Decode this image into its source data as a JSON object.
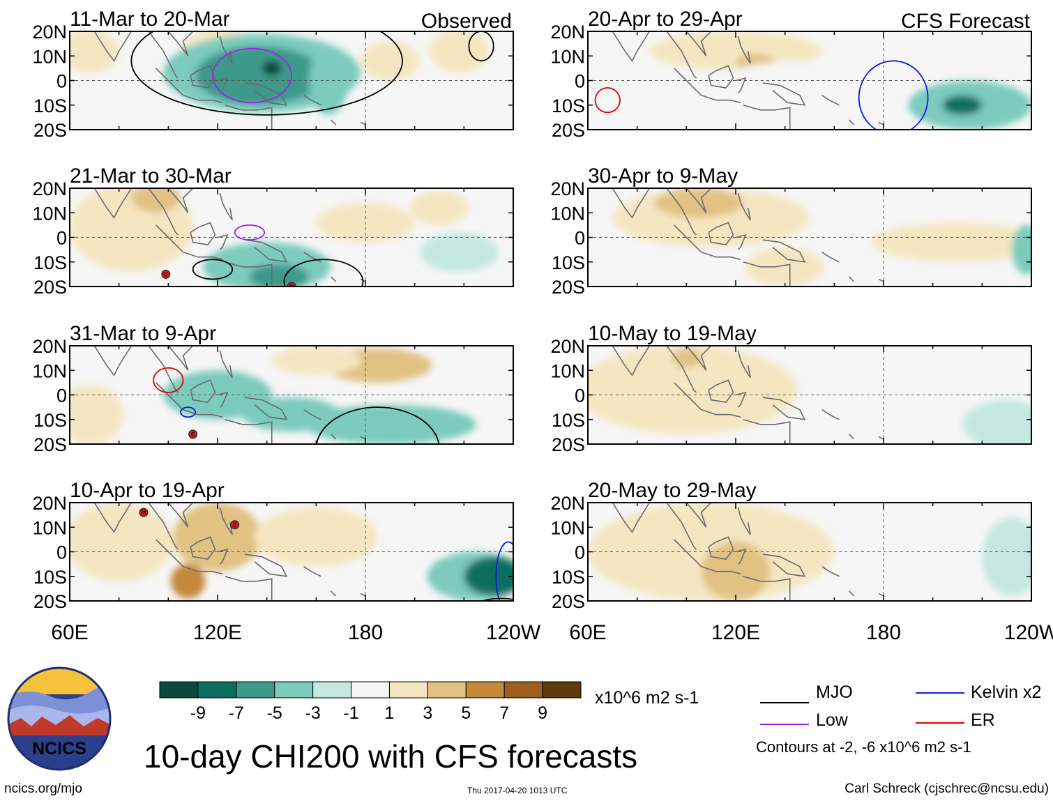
{
  "chart_data": {
    "type": "heatmap",
    "title": "10-day CHI200 with CFS forecasts",
    "column_labels": [
      "Observed",
      "CFS Forecast"
    ],
    "y_ticks": [
      "20N",
      "10N",
      "0",
      "10S",
      "20S"
    ],
    "x_ticks": [
      "60E",
      "120E",
      "180",
      "120W"
    ],
    "panels": [
      {
        "col": 0,
        "row": 0,
        "label": "11-Mar to 20-Mar",
        "blobs": [
          {
            "lon": 68,
            "lat": 12,
            "rlon": 12,
            "rlat": 9,
            "value": 3
          },
          {
            "lon": 120,
            "lat": 12,
            "rlon": 14,
            "rlat": 10,
            "value": 3
          },
          {
            "lon": 138,
            "lat": 3,
            "rlon": 40,
            "rlat": 16,
            "value": -3
          },
          {
            "lon": 137,
            "lat": 2,
            "rlon": 26,
            "rlat": 12,
            "value": -5
          },
          {
            "lon": 142,
            "lat": 5,
            "rlon": 4,
            "rlat": 3,
            "value": -9
          },
          {
            "lon": 165,
            "lat": 0,
            "rlon": 8,
            "rlat": 14,
            "value": -3
          },
          {
            "lon": 190,
            "lat": 8,
            "rlon": 12,
            "rlat": 8,
            "value": 3
          },
          {
            "lon": 218,
            "lat": 12,
            "rlon": 12,
            "rlat": 9,
            "value": 3
          }
        ],
        "contours": [
          {
            "kind": "Low",
            "lon": 134,
            "lat": 2,
            "rlon": 16,
            "rlat": 11
          },
          {
            "kind": "MJO",
            "lon": 140,
            "lat": 8,
            "rlon": 55,
            "rlat": 22
          },
          {
            "kind": "MJO",
            "lon": 227,
            "lat": 14,
            "rlon": 5,
            "rlat": 6
          }
        ],
        "storms": []
      },
      {
        "col": 0,
        "row": 1,
        "label": "21-Mar to 30-Mar",
        "blobs": [
          {
            "lon": 85,
            "lat": 4,
            "rlon": 25,
            "rlat": 18,
            "value": 3
          },
          {
            "lon": 95,
            "lat": 16,
            "rlon": 10,
            "rlat": 6,
            "value": 5
          },
          {
            "lon": 140,
            "lat": -12,
            "rlon": 26,
            "rlat": 10,
            "value": -3
          },
          {
            "lon": 145,
            "lat": -16,
            "rlon": 12,
            "rlat": 5,
            "value": -5
          },
          {
            "lon": 180,
            "lat": 6,
            "rlon": 20,
            "rlat": 8,
            "value": 3
          },
          {
            "lon": 218,
            "lat": -6,
            "rlon": 16,
            "rlat": 8,
            "value": -1
          },
          {
            "lon": 210,
            "lat": 12,
            "rlon": 12,
            "rlat": 7,
            "value": 3
          }
        ],
        "contours": [
          {
            "kind": "Low",
            "lon": 133,
            "lat": 2,
            "rlon": 6,
            "rlat": 3
          },
          {
            "kind": "MJO",
            "lon": 118,
            "lat": -13,
            "rlon": 8,
            "rlat": 4
          },
          {
            "kind": "MJO",
            "lon": 163,
            "lat": -18,
            "rlon": 16,
            "rlat": 9
          }
        ],
        "storms": [
          {
            "lon": 99,
            "lat": -15,
            "letter": "C"
          },
          {
            "lon": 150,
            "lat": -20,
            "letter": "D"
          }
        ]
      },
      {
        "col": 0,
        "row": 2,
        "label": "31-Mar to 9-Apr",
        "blobs": [
          {
            "lon": 68,
            "lat": -8,
            "rlon": 14,
            "rlat": 12,
            "value": 3
          },
          {
            "lon": 120,
            "lat": 0,
            "rlon": 22,
            "rlat": 10,
            "value": -3
          },
          {
            "lon": 150,
            "lat": -8,
            "rlon": 20,
            "rlat": 7,
            "value": -3
          },
          {
            "lon": 190,
            "lat": -12,
            "rlon": 35,
            "rlat": 8,
            "value": -3
          },
          {
            "lon": 185,
            "lat": 12,
            "rlon": 22,
            "rlat": 7,
            "value": 5
          },
          {
            "lon": 160,
            "lat": 14,
            "rlon": 18,
            "rlat": 6,
            "value": 3
          }
        ],
        "contours": [
          {
            "kind": "ER",
            "lon": 100,
            "lat": 6,
            "rlon": 6,
            "rlat": 5
          },
          {
            "kind": "Kelvin x2",
            "lon": 108,
            "lat": -7,
            "rlon": 3,
            "rlat": 2
          },
          {
            "kind": "MJO",
            "lon": 185,
            "lat": -22,
            "rlon": 25,
            "rlat": 17
          }
        ],
        "storms": [
          {
            "lon": 110,
            "lat": -16,
            "letter": "E"
          }
        ]
      },
      {
        "col": 0,
        "row": 3,
        "label": "10-Apr to 19-Apr",
        "blobs": [
          {
            "lon": 80,
            "lat": 4,
            "rlon": 22,
            "rlat": 16,
            "value": 3
          },
          {
            "lon": 120,
            "lat": 6,
            "rlon": 18,
            "rlat": 14,
            "value": 5
          },
          {
            "lon": 108,
            "lat": -12,
            "rlon": 7,
            "rlat": 7,
            "value": 7
          },
          {
            "lon": 160,
            "lat": 6,
            "rlon": 25,
            "rlat": 12,
            "value": 3
          },
          {
            "lon": 225,
            "lat": -10,
            "rlon": 20,
            "rlat": 10,
            "value": -3
          },
          {
            "lon": 232,
            "lat": -10,
            "rlon": 12,
            "rlat": 8,
            "value": -7
          }
        ],
        "contours": [
          {
            "kind": "Kelvin x2",
            "lon": 238,
            "lat": -10,
            "rlon": 5,
            "rlat": 14
          },
          {
            "kind": "MJO",
            "lon": 235,
            "lat": -22,
            "rlon": 10,
            "rlat": 3
          }
        ],
        "storms": [
          {
            "lon": 90,
            "lat": 16,
            "letter": "M"
          },
          {
            "lon": 127,
            "lat": 11,
            "letter": "2"
          }
        ]
      },
      {
        "col": 1,
        "row": 0,
        "label": "20-Apr to 29-Apr",
        "blobs": [
          {
            "lon": 120,
            "lat": 12,
            "rlon": 35,
            "rlat": 8,
            "value": 3
          },
          {
            "lon": 128,
            "lat": 7,
            "rlon": 8,
            "rlat": 4,
            "value": 5
          },
          {
            "lon": 150,
            "lat": -2,
            "rlon": 40,
            "rlat": 10,
            "value": 1
          },
          {
            "lon": 215,
            "lat": -10,
            "rlon": 25,
            "rlat": 10,
            "value": -3
          },
          {
            "lon": 212,
            "lat": -10,
            "rlon": 8,
            "rlat": 4,
            "value": -7
          }
        ],
        "contours": [
          {
            "kind": "ER",
            "lon": 68,
            "lat": -8,
            "rlon": 5,
            "rlat": 5
          },
          {
            "kind": "Kelvin x2",
            "lon": 184,
            "lat": -7,
            "rlon": 14,
            "rlat": 15
          }
        ],
        "storms": []
      },
      {
        "col": 1,
        "row": 1,
        "label": "30-Apr to 9-May",
        "blobs": [
          {
            "lon": 110,
            "lat": 8,
            "rlon": 40,
            "rlat": 12,
            "value": 3
          },
          {
            "lon": 105,
            "lat": 14,
            "rlon": 18,
            "rlat": 6,
            "value": 5
          },
          {
            "lon": 140,
            "lat": -12,
            "rlon": 16,
            "rlat": 8,
            "value": 3
          },
          {
            "lon": 210,
            "lat": -2,
            "rlon": 35,
            "rlat": 8,
            "value": 3
          },
          {
            "lon": 238,
            "lat": -5,
            "rlon": 6,
            "rlat": 10,
            "value": -3
          }
        ],
        "contours": [],
        "storms": []
      },
      {
        "col": 1,
        "row": 2,
        "label": "10-May to 19-May",
        "blobs": [
          {
            "lon": 100,
            "lat": 2,
            "rlon": 45,
            "rlat": 18,
            "value": 3
          },
          {
            "lon": 100,
            "lat": 15,
            "rlon": 6,
            "rlat": 4,
            "value": 5
          },
          {
            "lon": 230,
            "lat": -12,
            "rlon": 18,
            "rlat": 10,
            "value": -1
          }
        ],
        "contours": [],
        "storms": []
      },
      {
        "col": 1,
        "row": 3,
        "label": "20-May to 29-May",
        "blobs": [
          {
            "lon": 110,
            "lat": 0,
            "rlon": 50,
            "rlat": 20,
            "value": 3
          },
          {
            "lon": 120,
            "lat": -8,
            "rlon": 14,
            "rlat": 12,
            "value": 5
          },
          {
            "lon": 232,
            "lat": -2,
            "rlon": 12,
            "rlat": 16,
            "value": -1
          }
        ],
        "contours": [],
        "storms": []
      }
    ],
    "colorbar": {
      "ticks": [
        "-9",
        "-7",
        "-5",
        "-3",
        "-1",
        "1",
        "3",
        "5",
        "7",
        "9"
      ],
      "colors": [
        "#0a4a3e",
        "#0c6e60",
        "#3d998a",
        "#7ccbbd",
        "#c4e8e0",
        "#f6f6f6",
        "#f5e6c2",
        "#e1c283",
        "#c4883b",
        "#9c5f1d",
        "#5e3c0c"
      ],
      "units": "x10^6 m2 s-1"
    },
    "legend": [
      {
        "label": "MJO",
        "color": "#000000"
      },
      {
        "label": "Kelvin x2",
        "color": "#0a1ee0"
      },
      {
        "label": "Low",
        "color": "#a020f0"
      },
      {
        "label": "ER",
        "color": "#e00000"
      }
    ],
    "contour_note": "Contours at -2, -6 x10^6 m2 s-1"
  },
  "logo": {
    "text": "NCICS"
  },
  "footer": {
    "url": "ncics.org/mjo",
    "timestamp": "Thu 2017-04-20 1013 UTC",
    "credit": "Carl Schreck (cjschrec@ncsu.edu)"
  }
}
